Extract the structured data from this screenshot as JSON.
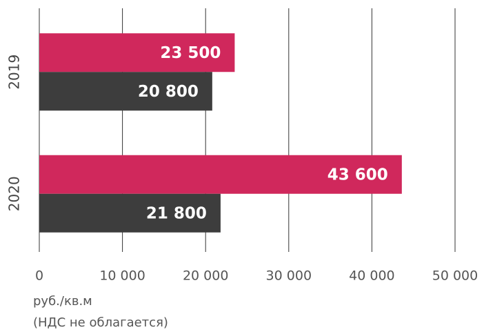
{
  "chart_data": {
    "type": "hbar",
    "categories": [
      "2019",
      "2020"
    ],
    "series": [
      {
        "color": "#d0285c",
        "values": [
          23500,
          43600
        ],
        "value_labels": [
          "23 500",
          "43 600"
        ]
      },
      {
        "color": "#3d3d3d",
        "values": [
          20800,
          21800
        ],
        "value_labels": [
          "20 800",
          "21 800"
        ]
      }
    ],
    "xlim": [
      0,
      50000
    ],
    "xticks": [
      0,
      {
        "value": 10000,
        "label": "10 000"
      },
      {
        "value": 20000,
        "label": "20 000"
      },
      {
        "value": 30000,
        "label": "30 000"
      },
      {
        "value": 40000,
        "label": "40 000"
      },
      {
        "value": 50000,
        "label": "50 000"
      }
    ],
    "xlabel": "руб./кв.м",
    "note": "(НДС не облагается)",
    "grid": true
  }
}
